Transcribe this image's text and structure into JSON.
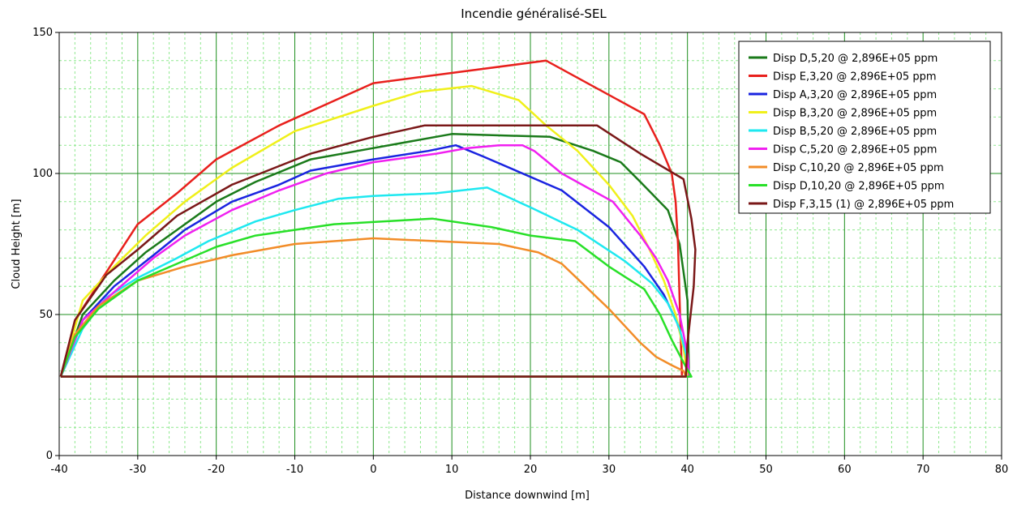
{
  "chart_data": {
    "type": "line",
    "title": "Incendie généralisé-SEL",
    "xlabel": "Distance downwind [m]",
    "ylabel": "Cloud Height [m]",
    "xlim": [
      -40,
      80
    ],
    "ylim": [
      0,
      150
    ],
    "x_ticks": [
      -40,
      -30,
      -20,
      -10,
      0,
      10,
      20,
      30,
      40,
      50,
      60,
      70,
      80
    ],
    "y_ticks": [
      0,
      50,
      100,
      150
    ],
    "grid": true,
    "legend_position": "top-right",
    "series": [
      {
        "name": "Disp D,5,20 @ 2,896E+05 ppm",
        "color": "#1a7a1a",
        "x": [
          -39.8,
          -37,
          -33,
          -29,
          -25,
          -20,
          -15,
          -8,
          0,
          10,
          22.5,
          28,
          31.5,
          34,
          37.5,
          39,
          40,
          40.2,
          -39.8
        ],
        "y": [
          28,
          50,
          62,
          72,
          80,
          90,
          97,
          105,
          109,
          114,
          113,
          108,
          104,
          97,
          87,
          75,
          55,
          28,
          28
        ]
      },
      {
        "name": "Disp E,3,20 @ 2,896E+05 ppm",
        "color": "#e8201c",
        "x": [
          -39.8,
          -38,
          -34,
          -30,
          -25,
          -20,
          -12,
          0,
          22,
          34.5,
          36.5,
          38,
          38.5,
          38.8,
          39,
          39.3,
          -39.8
        ],
        "y": [
          28,
          48,
          65,
          82,
          93,
          105,
          117,
          132,
          140,
          121,
          110,
          100,
          90,
          75,
          55,
          28,
          28
        ]
      },
      {
        "name": "Disp A,3,20 @ 2,896E+05 ppm",
        "color": "#1a24e0",
        "x": [
          -39.8,
          -37,
          -33,
          -28,
          -24,
          -18,
          -12,
          -8,
          0,
          7,
          10.5,
          14,
          24,
          30,
          34.5,
          37,
          38.7,
          39.8,
          40.2,
          -39.8
        ],
        "y": [
          28,
          48,
          60,
          71,
          80,
          90,
          96,
          101,
          105,
          108,
          110,
          106,
          94,
          81,
          67,
          57,
          47,
          36,
          28,
          28
        ]
      },
      {
        "name": "Disp B,3,20 @ 2,896E+05 ppm",
        "color": "#f0f01a",
        "x": [
          -39.8,
          -37,
          -33,
          -29,
          -24,
          -18,
          -10,
          0,
          6,
          12.5,
          18.5,
          22,
          26,
          30,
          33,
          35,
          37,
          38.5,
          39.5,
          40,
          -39.8
        ],
        "y": [
          28,
          55,
          67,
          78,
          90,
          102,
          115,
          124,
          129,
          131,
          126,
          117,
          108,
          96,
          85,
          74,
          62,
          50,
          38,
          28,
          28
        ]
      },
      {
        "name": "Disp B,5,20 @ 2,896E+05 ppm",
        "color": "#1ee8f0",
        "x": [
          -39.8,
          -37,
          -34,
          -30,
          -25,
          -21,
          -15,
          -10,
          -4.5,
          0,
          8,
          14.5,
          20,
          26,
          32,
          35.5,
          37.5,
          39,
          39.8,
          40.3,
          -39.8
        ],
        "y": [
          28,
          45,
          56,
          63,
          70,
          76,
          83,
          87,
          91,
          92,
          93,
          95,
          88,
          80,
          69,
          61,
          54,
          45,
          36,
          28,
          28
        ]
      },
      {
        "name": "Disp C,5,20 @ 2,896E+05 ppm",
        "color": "#f020f0",
        "x": [
          -39.8,
          -37,
          -33,
          -28,
          -24,
          -18,
          -12,
          -6,
          0,
          8,
          12,
          16,
          19,
          20.5,
          24,
          30.5,
          34,
          36,
          37.5,
          39,
          40,
          40.2,
          -39.8
        ],
        "y": [
          28,
          48,
          58,
          70,
          78,
          87,
          94,
          100,
          104,
          107,
          109,
          110,
          110,
          108,
          100,
          90,
          78,
          70,
          62,
          50,
          36,
          28,
          28
        ]
      },
      {
        "name": "Disp C,10,20 @ 2,896E+05 ppm",
        "color": "#f28c28",
        "x": [
          -39.8,
          -38,
          -35,
          -30,
          -24,
          -18,
          -10,
          0,
          16,
          21,
          24,
          27,
          30,
          34,
          36,
          38,
          39.5,
          39.8,
          -39.8
        ],
        "y": [
          28,
          43,
          53,
          62,
          67,
          71,
          75,
          77,
          75,
          72,
          68,
          60,
          52,
          40,
          35,
          32,
          30,
          28,
          28
        ]
      },
      {
        "name": "Disp D,10,20 @ 2,896E+05 ppm",
        "color": "#28e028",
        "x": [
          -39.8,
          -38,
          -35,
          -30,
          -25,
          -20,
          -15,
          -10,
          -5,
          7.5,
          15,
          20,
          25.7,
          30,
          34.5,
          36.5,
          38,
          39.5,
          40.5,
          -39.8
        ],
        "y": [
          28,
          42,
          52,
          62,
          68,
          74,
          78,
          80,
          82,
          84,
          81,
          78,
          76,
          67,
          59,
          50,
          41,
          33,
          28,
          28
        ]
      },
      {
        "name": "Disp F,3,15 (1) @ 2,896E+05 ppm",
        "color": "#7a1818",
        "x": [
          -39.8,
          -38,
          -34,
          -30,
          -25,
          -18,
          -8,
          0,
          6.5,
          28.5,
          34,
          39.5,
          40.5,
          41,
          40.8,
          40,
          39.8,
          -39.8
        ],
        "y": [
          28,
          48,
          64,
          73,
          85,
          96,
          107,
          113,
          117,
          117,
          107,
          98,
          84,
          73,
          60,
          40,
          28,
          28
        ]
      }
    ]
  }
}
